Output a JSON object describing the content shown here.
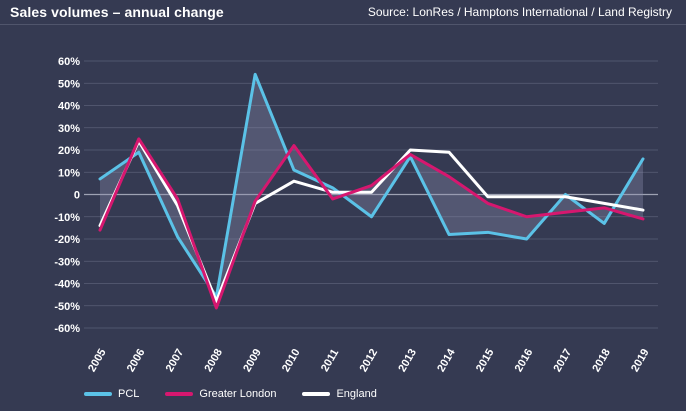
{
  "header": {
    "title": "Sales volumes – annual change",
    "source": "Source: LonRes / Hamptons International / Land Registry"
  },
  "chart_data": {
    "type": "line",
    "x": [
      "2005",
      "2006",
      "2007",
      "2008",
      "2009",
      "2010",
      "2011",
      "2012",
      "2013",
      "2014",
      "2015",
      "2016",
      "2017",
      "2018",
      "2019"
    ],
    "ylim": [
      -60,
      60
    ],
    "yticks": [
      -60,
      -50,
      -40,
      -30,
      -20,
      -10,
      0,
      10,
      20,
      30,
      40,
      50,
      60
    ],
    "ytick_labels": [
      "-60%",
      "-50%",
      "-40%",
      "-30%",
      "-20%",
      "-10%",
      "0",
      "10%",
      "20%",
      "30%",
      "40%",
      "50%",
      "60%"
    ],
    "grid": true,
    "legend_position": "bottom-left",
    "shaded_area": "between PCL and Greater London",
    "series": [
      {
        "name": "PCL",
        "color": "#5bc2e7",
        "values": [
          7,
          19,
          -19,
          -46,
          54,
          11,
          3,
          -10,
          17,
          -18,
          -17,
          -20,
          0,
          -13,
          16
        ]
      },
      {
        "name": "Greater London",
        "color": "#d6176f",
        "values": [
          -16,
          25,
          -2,
          -51,
          -3,
          22,
          -2,
          4,
          18,
          8,
          -4,
          -10,
          -8,
          -6,
          -11
        ]
      },
      {
        "name": "England",
        "color": "#ffffff",
        "values": [
          -14,
          24,
          -5,
          -48,
          -4,
          6,
          1,
          1,
          20,
          19,
          -1,
          -1,
          -1,
          -4,
          -7
        ]
      }
    ]
  }
}
